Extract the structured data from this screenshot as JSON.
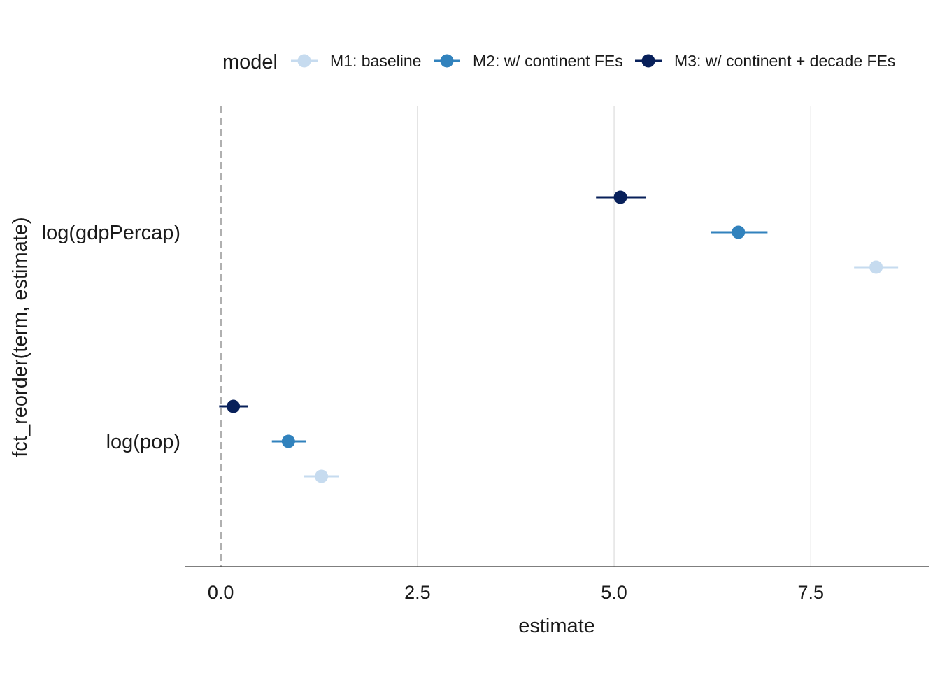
{
  "chart_data": {
    "type": "scatter",
    "title": "",
    "xlabel": "estimate",
    "ylabel": "fct_reorder(term, estimate)",
    "xlim": [
      -0.45,
      9.0
    ],
    "x_ticks": [
      "0.0",
      "2.5",
      "5.0",
      "7.5"
    ],
    "x_tick_values": [
      0,
      2.5,
      5,
      7.5
    ],
    "categories": [
      "log(pop)",
      "log(gdpPercap)"
    ],
    "reference_line": 0,
    "grid": "vertical major lines",
    "legend": {
      "title": "model",
      "position": "top"
    },
    "series": [
      {
        "name": "M1: baseline",
        "color": "#c6dbef",
        "points": [
          {
            "term": "log(gdpPercap)",
            "estimate": 8.33,
            "low": 8.05,
            "high": 8.61
          },
          {
            "term": "log(pop)",
            "estimate": 1.28,
            "low": 1.06,
            "high": 1.5
          }
        ]
      },
      {
        "name": "M2: w/ continent FEs",
        "color": "#3182bd",
        "points": [
          {
            "term": "log(gdpPercap)",
            "estimate": 6.58,
            "low": 6.23,
            "high": 6.95
          },
          {
            "term": "log(pop)",
            "estimate": 0.86,
            "low": 0.65,
            "high": 1.08
          }
        ]
      },
      {
        "name": "M3: w/ continent + decade FEs",
        "color": "#08205a",
        "points": [
          {
            "term": "log(gdpPercap)",
            "estimate": 5.08,
            "low": 4.77,
            "high": 5.4
          },
          {
            "term": "log(pop)",
            "estimate": 0.16,
            "low": -0.02,
            "high": 0.35
          }
        ]
      }
    ]
  }
}
